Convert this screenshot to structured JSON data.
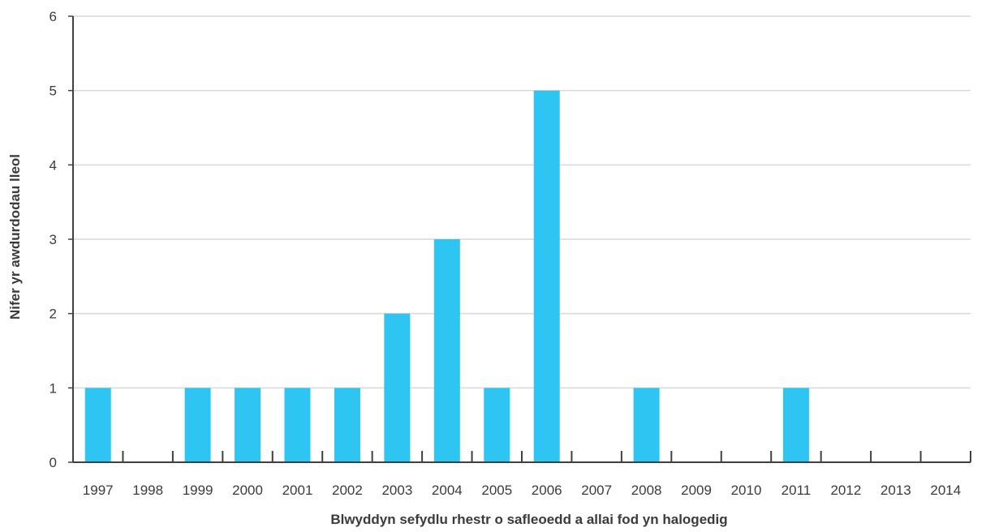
{
  "chart_data": {
    "type": "bar",
    "title": "",
    "xlabel": "Blwyddyn sefydlu rhestr o safleoedd a allai fod yn halogedig",
    "ylabel": "Nifer yr awdurdodau lleol",
    "categories": [
      "1997",
      "1998",
      "1999",
      "2000",
      "2001",
      "2002",
      "2003",
      "2004",
      "2005",
      "2006",
      "2007",
      "2008",
      "2009",
      "2010",
      "2011",
      "2012",
      "2013",
      "2014"
    ],
    "values": [
      1,
      0,
      1,
      1,
      1,
      1,
      2,
      3,
      1,
      5,
      0,
      1,
      0,
      0,
      1,
      0,
      0,
      0
    ],
    "yticks": [
      "0",
      "1",
      "2",
      "3",
      "4",
      "5",
      "6"
    ],
    "ylim": [
      0,
      6
    ],
    "grid": true,
    "legend": "none",
    "colors": {
      "bar": "#2ec5f3",
      "grid": "#d9d9d9",
      "axis": "#404040"
    }
  }
}
